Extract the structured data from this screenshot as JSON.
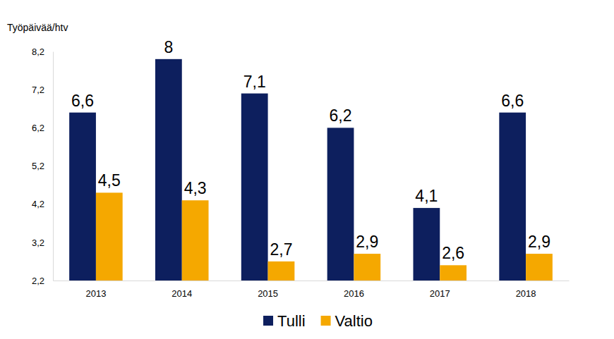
{
  "chart_data": {
    "type": "bar",
    "y_label": "Työpäivää/htv",
    "categories": [
      "2013",
      "2014",
      "2015",
      "2016",
      "2017",
      "2018"
    ],
    "series": [
      {
        "name": "Tulli",
        "color": "#0d1f5e",
        "values": [
          6.6,
          8,
          7.1,
          6.2,
          4.1,
          6.6
        ],
        "value_labels": [
          "6,6",
          "8",
          "7,1",
          "6,2",
          "4,1",
          "6,6"
        ]
      },
      {
        "name": "Valtio",
        "color": "#f5a800",
        "values": [
          4.5,
          4.3,
          2.7,
          2.9,
          2.6,
          2.9
        ],
        "value_labels": [
          "4,5",
          "4,3",
          "2,7",
          "2,9",
          "2,6",
          "2,9"
        ]
      }
    ],
    "ylim": [
      2.2,
      8.2
    ],
    "yticks": [
      {
        "value": 2.2,
        "label": "2,2"
      },
      {
        "value": 3.2,
        "label": "3,2"
      },
      {
        "value": 4.2,
        "label": "4,2"
      },
      {
        "value": 5.2,
        "label": "5,2"
      },
      {
        "value": 6.2,
        "label": "6,2"
      },
      {
        "value": 7.2,
        "label": "7,2"
      },
      {
        "value": 8.2,
        "label": "8,2"
      }
    ],
    "grid": false,
    "data_labels": true,
    "legend": "bottom"
  }
}
